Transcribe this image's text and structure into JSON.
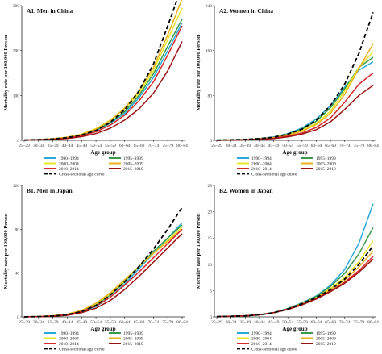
{
  "chart_data": [
    {
      "type": "line",
      "title": "A1. Men in China",
      "xlabel": "Age group",
      "ylabel": "Mortality rate per 100,000 Person",
      "ylim": [
        0,
        300
      ],
      "yticks": [
        "0",
        "100",
        "200",
        "300"
      ],
      "x": [
        "25–29",
        "30–34",
        "35–39",
        "40–44",
        "45–49",
        "50–54",
        "55–59",
        "60–64",
        "65–69",
        "70–74",
        "75–79",
        "80–84"
      ],
      "series": [
        {
          "name": "1990–1994",
          "color": "#2aa8d8",
          "values": [
            0.5,
            1.5,
            3,
            6,
            12,
            22,
            38,
            60,
            95,
            140,
            200,
            262
          ]
        },
        {
          "name": "1995–1999",
          "color": "#3a9a4a",
          "values": [
            0.5,
            1.5,
            3,
            6,
            12,
            23,
            40,
            64,
            100,
            148,
            210,
            270
          ]
        },
        {
          "name": "2000–2004",
          "color": "#e7e82a",
          "values": [
            0.5,
            1.5,
            3.5,
            7,
            14,
            26,
            45,
            70,
            105,
            155,
            225,
            295
          ]
        },
        {
          "name": "2005–2009",
          "color": "#e8b21f",
          "values": [
            0.5,
            1.5,
            3.5,
            7,
            13,
            25,
            44,
            72,
            110,
            162,
            235,
            315
          ]
        },
        {
          "name": "2010–2014",
          "color": "#d42a2a",
          "values": [
            0.5,
            1.2,
            2.5,
            5,
            10,
            19,
            34,
            56,
            88,
            130,
            190,
            255
          ]
        },
        {
          "name": "2015–2019",
          "color": "#9b1414",
          "values": [
            0.5,
            1,
            2,
            4,
            8,
            15,
            27,
            45,
            70,
            105,
            155,
            220
          ]
        },
        {
          "name": "Cross-sectional age curve",
          "color": "#000000",
          "dashed": true,
          "values": [
            0.5,
            1.5,
            3,
            6,
            12,
            22,
            40,
            68,
            110,
            170,
            255,
            345
          ]
        }
      ]
    },
    {
      "type": "line",
      "title": "A2. Women in China",
      "xlabel": "Age group",
      "ylabel": "Mortality rate per 100,000 Person",
      "ylim": [
        0,
        240
      ],
      "yticks": [
        "0",
        "80",
        "160",
        "240"
      ],
      "x": [
        "25–29",
        "30–34",
        "35–39",
        "40–44",
        "45–49",
        "50–54",
        "55–59",
        "60–64",
        "65–69",
        "70–74",
        "75–79",
        "80–84"
      ],
      "series": [
        {
          "name": "1990–1994",
          "color": "#2aa8d8",
          "values": [
            0.3,
            0.8,
            1.5,
            3,
            6,
            12,
            22,
            38,
            62,
            95,
            125,
            140
          ]
        },
        {
          "name": "1995–1999",
          "color": "#3a9a4a",
          "values": [
            0.3,
            0.8,
            1.5,
            3,
            5.5,
            11,
            20,
            34,
            58,
            92,
            130,
            148
          ]
        },
        {
          "name": "2000–2004",
          "color": "#e7e82a",
          "values": [
            0.3,
            0.8,
            1.4,
            2.8,
            5,
            10,
            18,
            30,
            52,
            88,
            130,
            158
          ]
        },
        {
          "name": "2005–2009",
          "color": "#e8b21f",
          "values": [
            0.3,
            0.7,
            1.3,
            2.5,
            4.5,
            9,
            16,
            28,
            48,
            82,
            128,
            172
          ]
        },
        {
          "name": "2010–2014",
          "color": "#d42a2a",
          "values": [
            0.2,
            0.6,
            1.1,
            2.1,
            3.8,
            7.5,
            13,
            23,
            40,
            68,
            100,
            120
          ]
        },
        {
          "name": "2015–2019",
          "color": "#9b1414",
          "values": [
            0.2,
            0.5,
            0.9,
            1.7,
            3,
            6,
            11,
            19,
            33,
            55,
            80,
            98
          ]
        },
        {
          "name": "Cross-sectional age curve",
          "color": "#000000",
          "dashed": true,
          "values": [
            0.3,
            0.8,
            1.5,
            3,
            5.5,
            11,
            20,
            36,
            62,
            100,
            155,
            228
          ]
        }
      ]
    },
    {
      "type": "line",
      "title": "B1. Men in Japan",
      "xlabel": "Age group",
      "ylabel": "Mortality rate per 100,000 Person",
      "ylim": [
        0,
        120
      ],
      "yticks": [
        "0",
        "40",
        "80",
        "120"
      ],
      "x": [
        "25–29",
        "30–34",
        "35–39",
        "40–44",
        "45–49",
        "50–54",
        "55–59",
        "60–64",
        "65–69",
        "70–74",
        "75–79",
        "80–84"
      ],
      "series": [
        {
          "name": "1990–1994",
          "color": "#2aa8d8",
          "values": [
            0.1,
            0.3,
            0.7,
            1.8,
            4.5,
            9.5,
            18,
            30,
            44,
            58,
            72,
            86
          ]
        },
        {
          "name": "1995–1999",
          "color": "#3a9a4a",
          "values": [
            0.1,
            0.3,
            0.8,
            2.2,
            5.5,
            11,
            20,
            32,
            46,
            60,
            72,
            84
          ]
        },
        {
          "name": "2000–2004",
          "color": "#e7e82a",
          "values": [
            0.1,
            0.4,
            1,
            2.5,
            6,
            12,
            21,
            33,
            46,
            58,
            70,
            82
          ]
        },
        {
          "name": "2005–2009",
          "color": "#e8b21f",
          "values": [
            0.1,
            0.4,
            1,
            2.5,
            6,
            12.5,
            22,
            34,
            46,
            58,
            69,
            80
          ]
        },
        {
          "name": "2010–2014",
          "color": "#d42a2a",
          "values": [
            0.1,
            0.3,
            0.8,
            2,
            5,
            10,
            18,
            29,
            41,
            54,
            67,
            80
          ]
        },
        {
          "name": "2015–2019",
          "color": "#9b1414",
          "values": [
            0.1,
            0.2,
            0.6,
            1.5,
            3.8,
            8,
            15,
            25,
            37,
            50,
            63,
            76
          ]
        },
        {
          "name": "Cross-sectional age curve",
          "color": "#000000",
          "dashed": true,
          "values": [
            0.1,
            0.3,
            0.8,
            2,
            5,
            10.5,
            20,
            32,
            46,
            62,
            80,
            100
          ]
        }
      ]
    },
    {
      "type": "line",
      "title": "B2. Women in Japan",
      "xlabel": "Age group",
      "ylabel": "Mortality rate per 100,000 Person",
      "ylim": [
        0,
        25
      ],
      "yticks": [
        "0",
        "5",
        "10",
        "15",
        "20",
        "25"
      ],
      "x": [
        "25–29",
        "30–34",
        "35–39",
        "40–44",
        "45–49",
        "50–54",
        "55–59",
        "60–64",
        "65–69",
        "70–74",
        "75–79",
        "80–84"
      ],
      "series": [
        {
          "name": "1990–1994",
          "color": "#2aa8d8",
          "values": [
            0.05,
            0.1,
            0.2,
            0.4,
            0.8,
            1.6,
            2.7,
            4,
            6,
            9,
            14,
            21.5
          ]
        },
        {
          "name": "1995–1999",
          "color": "#3a9a4a",
          "values": [
            0.05,
            0.1,
            0.2,
            0.4,
            0.8,
            1.6,
            2.6,
            3.9,
            5.8,
            8.3,
            12,
            17
          ]
        },
        {
          "name": "2000–2004",
          "color": "#e7e82a",
          "values": [
            0.05,
            0.1,
            0.2,
            0.4,
            0.8,
            1.5,
            2.5,
            3.7,
            5.4,
            7.5,
            10.5,
            14.5
          ]
        },
        {
          "name": "2005–2009",
          "color": "#e8b21f",
          "values": [
            0.05,
            0.1,
            0.2,
            0.4,
            0.8,
            1.5,
            2.5,
            3.6,
            5.1,
            7,
            9.5,
            12.5
          ]
        },
        {
          "name": "2010–2014",
          "color": "#d42a2a",
          "values": [
            0.05,
            0.1,
            0.2,
            0.4,
            0.8,
            1.5,
            2.4,
            3.5,
            4.9,
            6.6,
            8.8,
            11.5
          ]
        },
        {
          "name": "2015–2019",
          "color": "#9b1414",
          "values": [
            0.05,
            0.1,
            0.2,
            0.4,
            0.8,
            1.4,
            2.3,
            3.4,
            4.8,
            6.4,
            8.5,
            11
          ]
        },
        {
          "name": "Cross-sectional age curve",
          "color": "#000000",
          "dashed": true,
          "values": [
            0.05,
            0.1,
            0.2,
            0.4,
            0.8,
            1.5,
            2.5,
            3.7,
            5.2,
            7.2,
            10,
            13.5
          ]
        }
      ]
    }
  ]
}
